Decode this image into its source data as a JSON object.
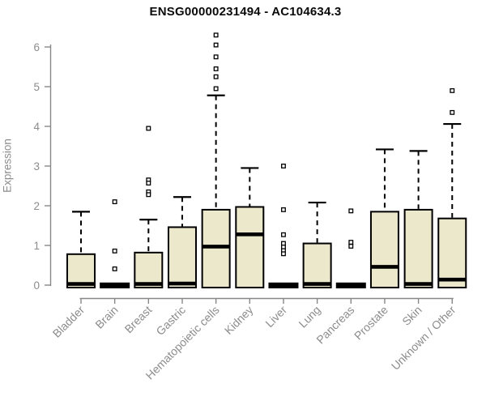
{
  "chart_data": {
    "type": "boxplot",
    "title": "ENSG00000231494 - AC104634.3",
    "ylabel": "Expression",
    "xlabel": "",
    "ylim": [
      0,
      6
    ],
    "yticks": [
      0,
      1,
      2,
      3,
      4,
      5,
      6
    ],
    "grid": "off",
    "legend": "none",
    "categories": [
      "Bladder",
      "Brain",
      "Breast",
      "Gastric",
      "Hematopoietic cells",
      "Kidney",
      "Liver",
      "Lung",
      "Pancreas",
      "Prostate",
      "Skin",
      "Unknown / Other"
    ],
    "series": [
      {
        "name": "Bladder",
        "flat": false,
        "q1": 0,
        "median": 0.03,
        "q3": 0.78,
        "whisker_low": 0,
        "whisker_high": 1.85,
        "outliers": []
      },
      {
        "name": "Brain",
        "flat": true,
        "q1": 0,
        "median": 0,
        "q3": 0,
        "whisker_low": 0,
        "whisker_high": 0,
        "outliers": [
          2.1,
          0.86,
          0.41
        ]
      },
      {
        "name": "Breast",
        "flat": false,
        "q1": 0,
        "median": 0.03,
        "q3": 0.82,
        "whisker_low": 0,
        "whisker_high": 1.65,
        "outliers": [
          3.95,
          2.65,
          2.57,
          2.35,
          2.28
        ]
      },
      {
        "name": "Gastric",
        "flat": false,
        "q1": 0,
        "median": 0.04,
        "q3": 1.46,
        "whisker_low": 0,
        "whisker_high": 2.22,
        "outliers": []
      },
      {
        "name": "Hematopoietic cells",
        "flat": false,
        "q1": 0,
        "median": 0.97,
        "q3": 1.9,
        "whisker_low": 0,
        "whisker_high": 4.78,
        "outliers": [
          6.3,
          6.05,
          5.75,
          5.45,
          5.25,
          4.95
        ]
      },
      {
        "name": "Kidney",
        "flat": false,
        "q1": 0,
        "median": 1.28,
        "q3": 1.97,
        "whisker_low": 0,
        "whisker_high": 2.95,
        "outliers": []
      },
      {
        "name": "Liver",
        "flat": true,
        "q1": 0,
        "median": 0,
        "q3": 0,
        "whisker_low": 0,
        "whisker_high": 0,
        "outliers": [
          3.0,
          1.9,
          1.27,
          1.05,
          0.96,
          0.87,
          0.79
        ]
      },
      {
        "name": "Lung",
        "flat": false,
        "q1": 0,
        "median": 0.03,
        "q3": 1.05,
        "whisker_low": 0,
        "whisker_high": 2.08,
        "outliers": []
      },
      {
        "name": "Pancreas",
        "flat": true,
        "q1": 0,
        "median": 0,
        "q3": 0,
        "whisker_low": 0,
        "whisker_high": 0,
        "outliers": [
          1.87,
          1.08,
          0.98
        ]
      },
      {
        "name": "Prostate",
        "flat": false,
        "q1": 0,
        "median": 0.46,
        "q3": 1.85,
        "whisker_low": 0,
        "whisker_high": 3.42,
        "outliers": []
      },
      {
        "name": "Skin",
        "flat": false,
        "q1": 0,
        "median": 0.03,
        "q3": 1.9,
        "whisker_low": 0,
        "whisker_high": 3.38,
        "outliers": []
      },
      {
        "name": "Unknown / Other",
        "flat": false,
        "q1": 0,
        "median": 0.14,
        "q3": 1.68,
        "whisker_low": 0,
        "whisker_high": 4.06,
        "outliers": [
          4.9,
          4.35
        ]
      }
    ],
    "colors": {
      "box_fill": "#ece8cc",
      "box_border": "#000000",
      "axis": "#888888",
      "tick_label": "#8c8c8c",
      "title": "#0a0a0a",
      "outlier_fill": "#ffffff",
      "background": "#ffffff"
    }
  }
}
